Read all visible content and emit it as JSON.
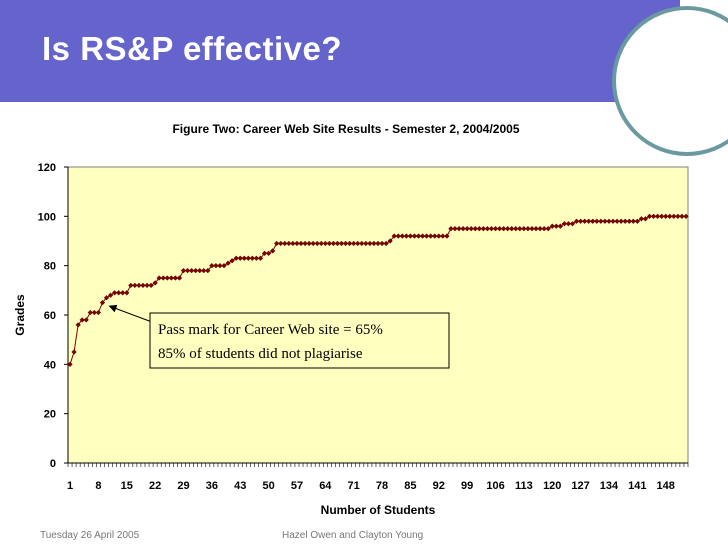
{
  "slide": {
    "title": "Is RS&P effective?",
    "footer_left": "Tuesday 26 April 2005",
    "footer_mid": "Hazel Owen and Clayton Young"
  },
  "colors": {
    "header": "#6464cc",
    "plot_bg": "#ffffc0",
    "marker": "#800000",
    "line": "#800000"
  },
  "chart_data": {
    "type": "line",
    "title": "Figure Two: Career Web Site Results - Semester 2, 2004/2005",
    "xlabel": "Number of Students",
    "ylabel": "Grades",
    "ylim": [
      0,
      120
    ],
    "yticks": [
      0,
      20,
      40,
      60,
      80,
      100,
      120
    ],
    "xlim": [
      1,
      153
    ],
    "xticks": [
      1,
      8,
      15,
      22,
      29,
      36,
      43,
      50,
      57,
      64,
      71,
      78,
      85,
      92,
      99,
      106,
      113,
      120,
      127,
      134,
      141,
      148
    ],
    "grid": false,
    "legend": "none",
    "marker": "diamond",
    "series": [
      {
        "x": [
          1,
          2,
          3,
          4,
          5,
          6,
          7,
          8,
          9,
          10,
          11,
          12,
          13,
          14,
          15,
          16,
          17,
          18,
          19,
          20,
          21,
          22,
          23,
          24,
          25,
          26,
          27,
          28,
          29,
          30,
          31,
          32,
          33,
          34,
          35,
          36,
          37,
          38,
          39,
          40,
          41,
          42,
          43,
          44,
          45,
          46,
          47,
          48,
          49,
          50,
          51,
          52,
          53,
          54,
          55,
          56,
          57,
          58,
          59,
          60,
          61,
          62,
          63,
          64,
          65,
          66,
          67,
          68,
          69,
          70,
          71,
          72,
          73,
          74,
          75,
          76,
          77,
          78,
          79,
          80,
          81,
          82,
          83,
          84,
          85,
          86,
          87,
          88,
          89,
          90,
          91,
          92,
          93,
          94,
          95,
          96,
          97,
          98,
          99,
          100,
          101,
          102,
          103,
          104,
          105,
          106,
          107,
          108,
          109,
          110,
          111,
          112,
          113,
          114,
          115,
          116,
          117,
          118,
          119,
          120,
          121,
          122,
          123,
          124,
          125,
          126,
          127,
          128,
          129,
          130,
          131,
          132,
          133,
          134,
          135,
          136,
          137,
          138,
          139,
          140,
          141,
          142,
          143,
          144,
          145,
          146,
          147,
          148,
          149,
          150,
          151,
          152,
          153
        ],
        "values": [
          40,
          45,
          56,
          58,
          58,
          61,
          61,
          61,
          65,
          67,
          68,
          69,
          69,
          69,
          69,
          72,
          72,
          72,
          72,
          72,
          72,
          73,
          75,
          75,
          75,
          75,
          75,
          75,
          78,
          78,
          78,
          78,
          78,
          78,
          78,
          80,
          80,
          80,
          80,
          81,
          82,
          83,
          83,
          83,
          83,
          83,
          83,
          83,
          85,
          85,
          86,
          89,
          89,
          89,
          89,
          89,
          89,
          89,
          89,
          89,
          89,
          89,
          89,
          89,
          89,
          89,
          89,
          89,
          89,
          89,
          89,
          89,
          89,
          89,
          89,
          89,
          89,
          89,
          89,
          90,
          92,
          92,
          92,
          92,
          92,
          92,
          92,
          92,
          92,
          92,
          92,
          92,
          92,
          92,
          95,
          95,
          95,
          95,
          95,
          95,
          95,
          95,
          95,
          95,
          95,
          95,
          95,
          95,
          95,
          95,
          95,
          95,
          95,
          95,
          95,
          95,
          95,
          95,
          95,
          96,
          96,
          96,
          97,
          97,
          97,
          98,
          98,
          98,
          98,
          98,
          98,
          98,
          98,
          98,
          98,
          98,
          98,
          98,
          98,
          98,
          98,
          99,
          99,
          100,
          100,
          100,
          100,
          100,
          100,
          100,
          100,
          100,
          100
        ]
      }
    ],
    "annotation": {
      "lines": [
        "Pass mark for Career Web site = 65%",
        "85% of students did not plagiarise"
      ],
      "arrow_target": {
        "x": 10,
        "y": 64
      }
    }
  }
}
